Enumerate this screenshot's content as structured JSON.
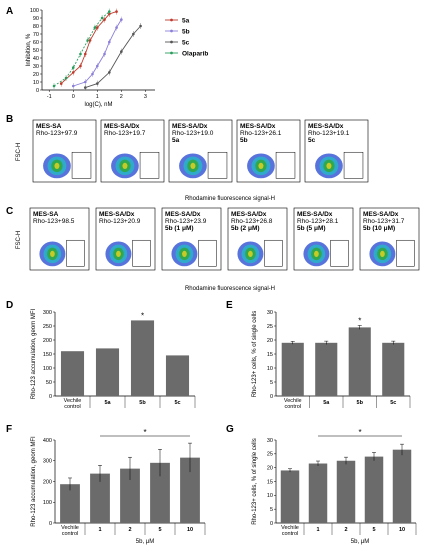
{
  "colors": {
    "bar": "#6b6b6b",
    "flow_outer": "#3b5bd6",
    "flow_mid": "#28b4c8",
    "flow_inner": "#2fa83a",
    "flow_core": "#e0d020",
    "s5a": "#c0392b",
    "s5b": "#8a7fd8",
    "s5c": "#555555",
    "olaparib": "#2a9d5c"
  },
  "panel_letters": [
    "A",
    "B",
    "C",
    "D",
    "E",
    "F",
    "G"
  ],
  "flow": {
    "y_label": "FSC-H",
    "x_label": "Rhodamine fluorescence signal-H",
    "row_b": [
      {
        "lines": [
          "MES-SA",
          "Rho-123+97.9"
        ],
        "bold": [
          true,
          false
        ]
      },
      {
        "lines": [
          "MES-SA/Dx",
          "Rho-123+19.7"
        ],
        "bold": [
          true,
          false
        ]
      },
      {
        "lines": [
          "MES-SA/Dx",
          "Rho-123+19.0",
          "5a"
        ],
        "bold": [
          true,
          false,
          true
        ]
      },
      {
        "lines": [
          "MES-SA/Dx",
          "Rho-123+26.1",
          "5b"
        ],
        "bold": [
          true,
          false,
          true
        ]
      },
      {
        "lines": [
          "MES-SA/Dx",
          "Rho-123+19.1",
          "5c"
        ],
        "bold": [
          true,
          false,
          true
        ]
      }
    ],
    "row_c": [
      {
        "lines": [
          "MES-SA",
          "Rho-123+98.5"
        ],
        "bold": [
          true,
          false
        ]
      },
      {
        "lines": [
          "MES-SA/Dx",
          "Rho-123+20.9"
        ],
        "bold": [
          true,
          false
        ]
      },
      {
        "lines": [
          "MES-SA/Dx",
          "Rho-123+23.9",
          "5b (1 μM)"
        ],
        "bold": [
          true,
          false,
          true
        ]
      },
      {
        "lines": [
          "MES-SA/Dx",
          "Rho-123+26.8",
          "5b (2 μM)"
        ],
        "bold": [
          true,
          false,
          true
        ]
      },
      {
        "lines": [
          "MES-SA/Dx",
          "Rho-123+28.1",
          "5b (5 μM)"
        ],
        "bold": [
          true,
          false,
          true
        ]
      },
      {
        "lines": [
          "MES-SA/Dx",
          "Rho-123+31.7",
          "5b (10 μM)"
        ],
        "bold": [
          true,
          false,
          true
        ]
      }
    ]
  },
  "chart_data": [
    {
      "panel": "A",
      "type": "scatter",
      "xlabel": "log(C), nM",
      "ylabel": "Inhibition, %",
      "xlim": [
        -1.3,
        3.4
      ],
      "ylim": [
        0,
        100
      ],
      "xticks": [
        -1,
        0,
        1,
        2,
        3
      ],
      "yticks": [
        0,
        10,
        20,
        30,
        40,
        50,
        60,
        70,
        80,
        90,
        100
      ],
      "legend_position": "right",
      "series": [
        {
          "name": "5a",
          "x": [
            -0.5,
            0,
            0.3,
            0.5,
            0.7,
            1.0,
            1.3,
            1.5,
            1.8
          ],
          "y": [
            8,
            22,
            30,
            45,
            62,
            78,
            88,
            95,
            98
          ]
        },
        {
          "name": "5b",
          "x": [
            0,
            0.5,
            0.8,
            1.0,
            1.3,
            1.5,
            1.8,
            2.0
          ],
          "y": [
            5,
            10,
            20,
            30,
            45,
            60,
            78,
            88
          ]
        },
        {
          "name": "5c",
          "x": [
            0.5,
            1.0,
            1.5,
            2.0,
            2.5,
            2.8
          ],
          "y": [
            3,
            8,
            22,
            48,
            70,
            80
          ]
        },
        {
          "name": "Olaparib",
          "x": [
            -0.8,
            -0.3,
            0,
            0.3,
            0.6,
            0.9,
            1.2,
            1.5
          ],
          "y": [
            5,
            15,
            28,
            45,
            62,
            78,
            90,
            98
          ]
        }
      ]
    },
    {
      "panel": "D",
      "type": "bar",
      "categories": [
        "Vechile control",
        "5a",
        "5b",
        "5c"
      ],
      "values": [
        160,
        170,
        270,
        145
      ],
      "ylabel": "Rho-123 accumulation, geom MFI",
      "ylim": [
        0,
        300
      ],
      "yticks": [
        0,
        50,
        100,
        150,
        200,
        250,
        300
      ],
      "annotation": "*"
    },
    {
      "panel": "E",
      "type": "bar",
      "categories": [
        "Vechile control",
        "5a",
        "5b",
        "5c"
      ],
      "values": [
        19,
        19,
        24.5,
        19
      ],
      "errors": [
        0.5,
        0.6,
        0.7,
        0.6
      ],
      "ylabel": "Rho-123+ cells, % of single cells",
      "ylim": [
        0,
        30
      ],
      "yticks": [
        0,
        5,
        10,
        15,
        20,
        25,
        30
      ],
      "annotation": "*"
    },
    {
      "panel": "F",
      "type": "bar",
      "categories": [
        "Vechile control",
        "1",
        "2",
        "5",
        "10"
      ],
      "values": [
        187,
        238,
        262,
        290,
        315
      ],
      "errors": [
        30,
        40,
        55,
        65,
        70
      ],
      "xlabel": "5b, μM",
      "ylabel": "Rho-123 accumulation, geom MFI",
      "ylim": [
        0,
        400
      ],
      "yticks": [
        0,
        100,
        200,
        300,
        400
      ],
      "annotation": "*"
    },
    {
      "panel": "G",
      "type": "bar",
      "categories": [
        "Vechile control",
        "1",
        "2",
        "5",
        "10"
      ],
      "values": [
        19,
        21.5,
        22.5,
        24,
        26.5
      ],
      "errors": [
        0.6,
        0.9,
        1.3,
        1.5,
        2.0
      ],
      "xlabel": "5b, μM",
      "ylabel": "Rho-123+ cells, % of single cells",
      "ylim": [
        0,
        30
      ],
      "yticks": [
        0,
        5,
        10,
        15,
        20,
        25,
        30
      ],
      "annotation": "*"
    }
  ]
}
